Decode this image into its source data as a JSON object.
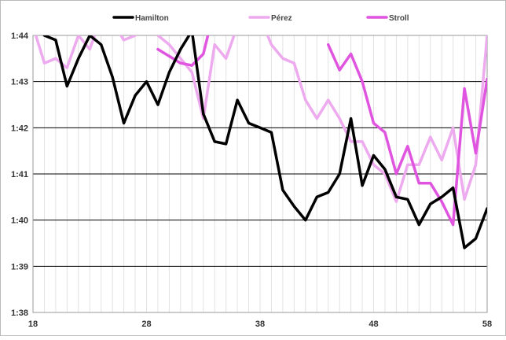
{
  "chart_data": {
    "type": "line",
    "title": "",
    "xlabel": "",
    "ylabel": "",
    "xlim": [
      18,
      58
    ],
    "ylim": [
      98,
      104
    ],
    "x_ticks": [
      18,
      28,
      38,
      48,
      58
    ],
    "y_ticks": [
      {
        "value": 98,
        "label": "1:38"
      },
      {
        "value": 99,
        "label": "1:39"
      },
      {
        "value": 100,
        "label": "1:40"
      },
      {
        "value": 101,
        "label": "1:41"
      },
      {
        "value": 102,
        "label": "1:42"
      },
      {
        "value": 103,
        "label": "1:43"
      },
      {
        "value": 104,
        "label": "1:44"
      }
    ],
    "grid": {
      "horizontal": true,
      "vertical_minor": true
    },
    "legend_position": "top",
    "series": [
      {
        "name": "Hamilton",
        "color": "#000000",
        "points": [
          [
            18,
            104.3
          ],
          [
            19,
            104.0
          ],
          [
            20,
            103.9
          ],
          [
            21,
            102.9
          ],
          [
            22,
            103.5
          ],
          [
            23,
            104.0
          ],
          [
            24,
            103.8
          ],
          [
            25,
            103.1
          ],
          [
            26,
            102.1
          ],
          [
            27,
            102.7
          ],
          [
            28,
            103.0
          ],
          [
            29,
            102.5
          ],
          [
            30,
            103.2
          ],
          [
            31,
            103.7
          ],
          [
            32,
            104.1
          ],
          [
            33,
            102.3
          ],
          [
            34,
            101.7
          ],
          [
            35,
            101.65
          ],
          [
            36,
            102.6
          ],
          [
            37,
            102.1
          ],
          [
            38,
            102.0
          ],
          [
            39,
            101.9
          ],
          [
            40,
            100.65
          ],
          [
            41,
            100.3
          ],
          [
            42,
            100.0
          ],
          [
            43,
            100.5
          ],
          [
            44,
            100.6
          ],
          [
            45,
            101.0
          ],
          [
            46,
            102.2
          ],
          [
            47,
            100.75
          ],
          [
            48,
            101.4
          ],
          [
            49,
            101.1
          ],
          [
            50,
            100.5
          ],
          [
            51,
            100.45
          ],
          [
            52,
            99.9
          ],
          [
            53,
            100.35
          ],
          [
            54,
            100.5
          ],
          [
            55,
            100.7
          ],
          [
            56,
            99.4
          ],
          [
            57,
            99.6
          ],
          [
            58,
            100.25
          ]
        ]
      },
      {
        "name": "Pérez",
        "color": "#eeaaee",
        "points": [
          [
            18,
            104.2
          ],
          [
            19,
            103.4
          ],
          [
            20,
            103.5
          ],
          [
            21,
            103.3
          ],
          [
            22,
            104.0
          ],
          [
            23,
            103.7
          ],
          [
            24,
            104.4
          ],
          [
            25,
            104.3
          ],
          [
            26,
            103.9
          ],
          [
            27,
            104.0
          ],
          [
            28,
            104.4
          ],
          [
            29,
            104.0
          ],
          [
            30,
            103.8
          ],
          [
            31,
            103.5
          ],
          [
            32,
            103.2
          ],
          [
            33,
            102.2
          ],
          [
            34,
            103.8
          ],
          [
            35,
            103.5
          ],
          [
            36,
            104.2
          ],
          [
            37,
            104.5
          ],
          [
            38,
            104.4
          ],
          [
            39,
            103.8
          ],
          [
            40,
            103.5
          ],
          [
            41,
            103.4
          ],
          [
            42,
            102.6
          ],
          [
            43,
            102.2
          ],
          [
            44,
            102.6
          ],
          [
            45,
            102.2
          ],
          [
            46,
            101.7
          ],
          [
            47,
            101.7
          ],
          [
            48,
            101.2
          ],
          [
            49,
            101.0
          ],
          [
            50,
            100.4
          ],
          [
            51,
            101.2
          ],
          [
            52,
            101.2
          ],
          [
            53,
            101.8
          ],
          [
            54,
            101.3
          ],
          [
            55,
            102.0
          ],
          [
            56,
            100.45
          ],
          [
            57,
            101.2
          ],
          [
            58,
            104.0
          ]
        ]
      },
      {
        "name": "Stroll",
        "color": "#e055e0",
        "points": [
          [
            29,
            103.7
          ],
          [
            30,
            103.55
          ],
          [
            31,
            103.4
          ],
          [
            32,
            103.35
          ],
          [
            33,
            103.6
          ],
          [
            34,
            104.6
          ],
          [
            44,
            103.8
          ],
          [
            45,
            103.25
          ],
          [
            46,
            103.6
          ],
          [
            47,
            103.0
          ],
          [
            48,
            102.1
          ],
          [
            49,
            101.9
          ],
          [
            50,
            101.0
          ],
          [
            51,
            101.6
          ],
          [
            52,
            100.8
          ],
          [
            53,
            100.8
          ],
          [
            54,
            100.4
          ],
          [
            55,
            99.9
          ],
          [
            56,
            102.85
          ],
          [
            57,
            101.45
          ],
          [
            58,
            103.05
          ]
        ]
      }
    ]
  }
}
